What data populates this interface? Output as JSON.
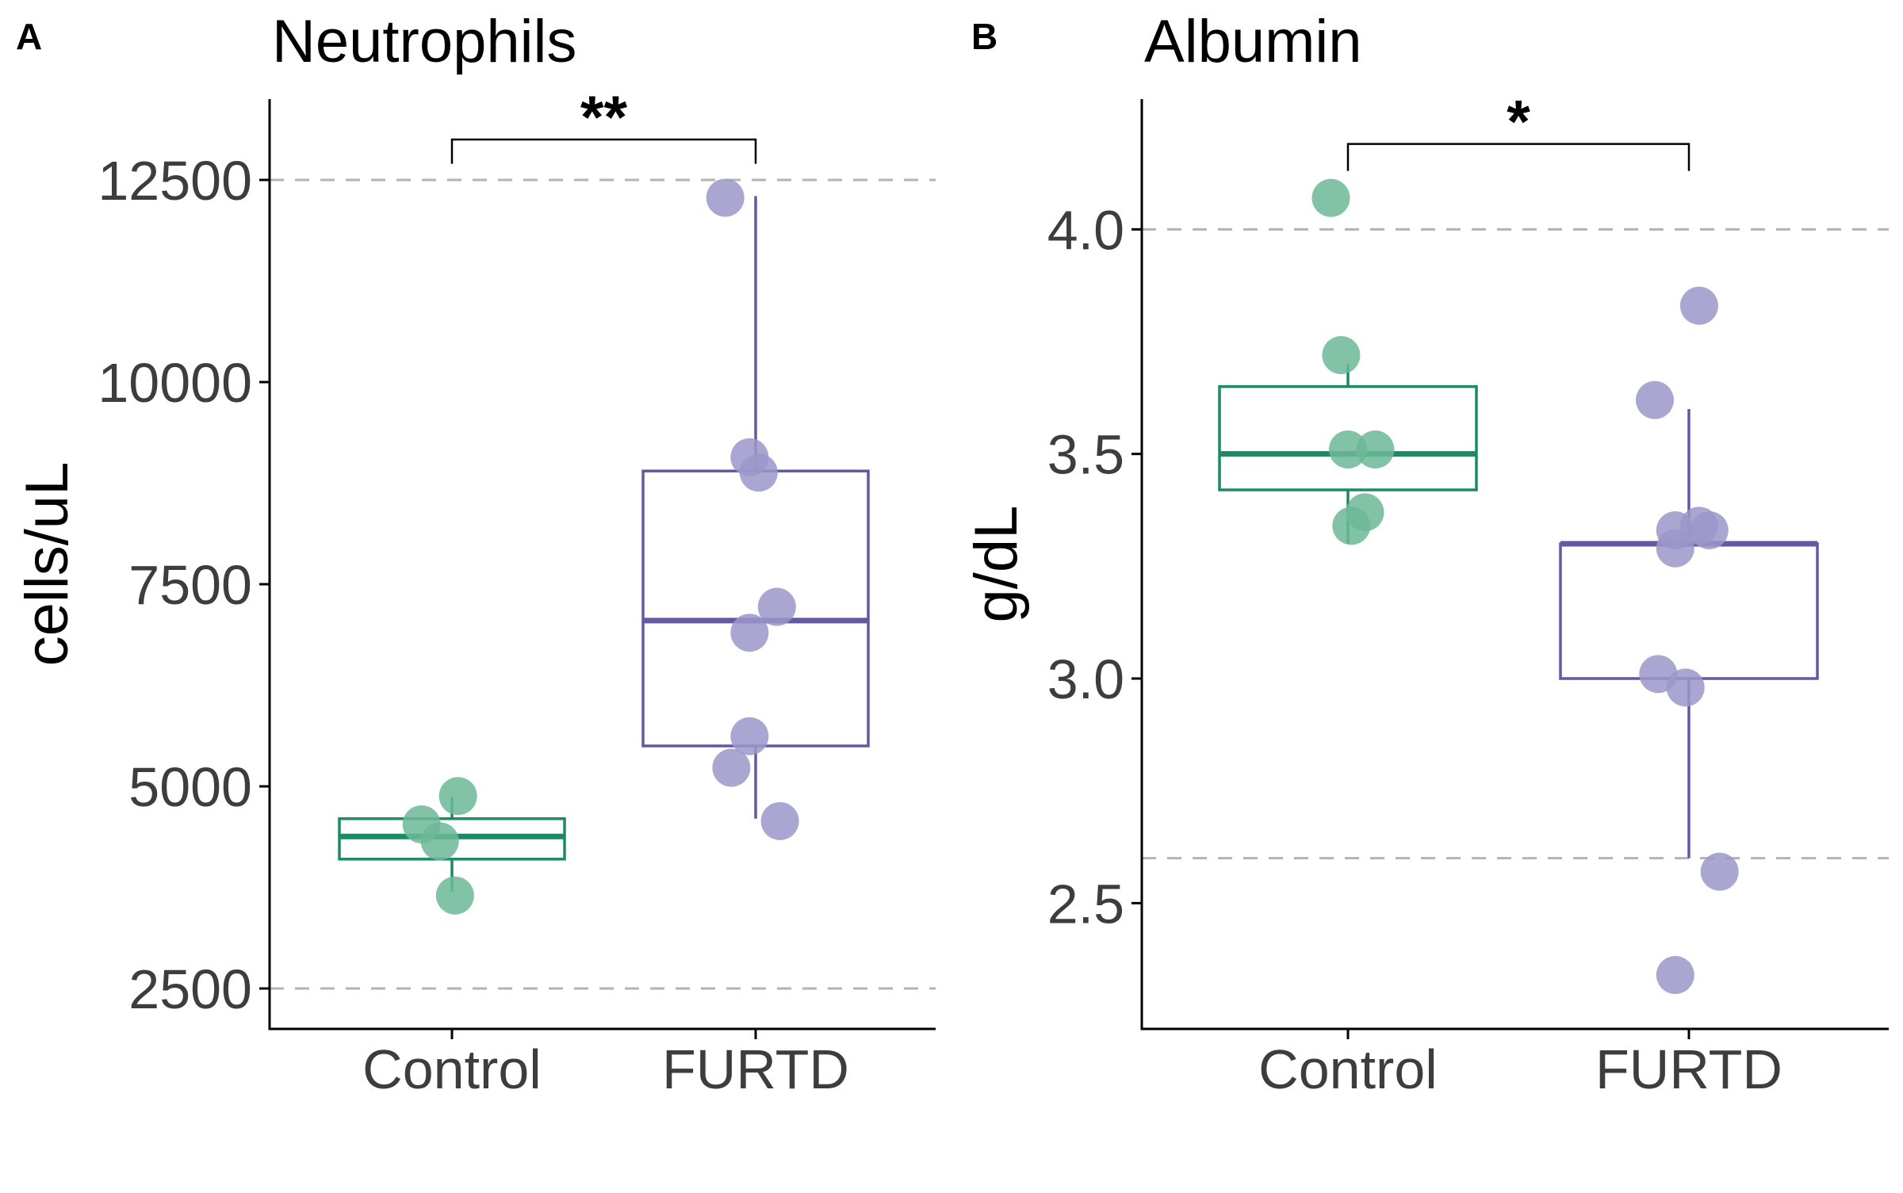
{
  "chart_data": [
    {
      "type": "box",
      "panel_label": "A",
      "title": "Neutrophils",
      "ylabel": "cells/uL",
      "xlabel": "",
      "categories": [
        "Control",
        "FURTD"
      ],
      "ylim": [
        2000,
        13500
      ],
      "yticks": [
        2500,
        5000,
        7500,
        10000,
        12500
      ],
      "reference_lines": [
        12500,
        2500
      ],
      "grid": false,
      "colors": {
        "Control": "#1b8a65",
        "FURTD": "#6258a4",
        "Control_point": "#6cb898",
        "FURTD_point": "#9b96ca"
      },
      "boxes": [
        {
          "name": "Control",
          "min": 3700,
          "q1": 4100,
          "median": 4380,
          "q3": 4600,
          "max": 4870
        },
        {
          "name": "FURTD",
          "min": 4600,
          "q1": 5500,
          "median": 7050,
          "q3": 8900,
          "max": 12300
        }
      ],
      "points": [
        {
          "group": "Control",
          "jitter": 0.02,
          "y": 4880
        },
        {
          "group": "Control",
          "jitter": -0.1,
          "y": 4530
        },
        {
          "group": "Control",
          "jitter": -0.04,
          "y": 4320
        },
        {
          "group": "Control",
          "jitter": 0.01,
          "y": 3650
        },
        {
          "group": "FURTD",
          "jitter": -0.1,
          "y": 12280
        },
        {
          "group": "FURTD",
          "jitter": -0.02,
          "y": 9070
        },
        {
          "group": "FURTD",
          "jitter": 0.01,
          "y": 8880
        },
        {
          "group": "FURTD",
          "jitter": 0.07,
          "y": 7220
        },
        {
          "group": "FURTD",
          "jitter": -0.02,
          "y": 6900
        },
        {
          "group": "FURTD",
          "jitter": -0.02,
          "y": 5620
        },
        {
          "group": "FURTD",
          "jitter": -0.08,
          "y": 5230
        },
        {
          "group": "FURTD",
          "jitter": 0.08,
          "y": 4570
        }
      ],
      "significance": {
        "label": "**",
        "from": "Control",
        "to": "FURTD",
        "y": 13000,
        "tick_bottom": 12700
      }
    },
    {
      "type": "box",
      "panel_label": "B",
      "title": "Albumin",
      "ylabel": "g/dL",
      "xlabel": "",
      "categories": [
        "Control",
        "FURTD"
      ],
      "ylim": [
        2.22,
        4.29
      ],
      "yticks": [
        2.5,
        3.0,
        3.5,
        4.0
      ],
      "yticks_text": [
        "2.5",
        "3.0",
        "3.5",
        "4.0"
      ],
      "reference_lines": [
        4.0,
        2.6
      ],
      "grid": false,
      "colors": {
        "Control": "#1b8a65",
        "FURTD": "#6258a4",
        "Control_point": "#6cb898",
        "FURTD_point": "#9b96ca"
      },
      "boxes": [
        {
          "name": "Control",
          "min": 3.3,
          "q1": 3.42,
          "median": 3.5,
          "q3": 3.65,
          "max": 3.7
        },
        {
          "name": "FURTD",
          "min": 2.6,
          "q1": 3.0,
          "median": 3.3,
          "q3": 3.3,
          "max": 3.6
        }
      ],
      "points": [
        {
          "group": "Control",
          "jitter": -0.05,
          "y": 4.07
        },
        {
          "group": "Control",
          "jitter": -0.02,
          "y": 3.72
        },
        {
          "group": "Control",
          "jitter": 0.0,
          "y": 3.51
        },
        {
          "group": "Control",
          "jitter": 0.08,
          "y": 3.51
        },
        {
          "group": "Control",
          "jitter": 0.05,
          "y": 3.37
        },
        {
          "group": "Control",
          "jitter": 0.01,
          "y": 3.34
        },
        {
          "group": "FURTD",
          "jitter": 0.03,
          "y": 3.83
        },
        {
          "group": "FURTD",
          "jitter": -0.1,
          "y": 3.62
        },
        {
          "group": "FURTD",
          "jitter": 0.03,
          "y": 3.34
        },
        {
          "group": "FURTD",
          "jitter": -0.04,
          "y": 3.33
        },
        {
          "group": "FURTD",
          "jitter": 0.06,
          "y": 3.33
        },
        {
          "group": "FURTD",
          "jitter": -0.04,
          "y": 3.29
        },
        {
          "group": "FURTD",
          "jitter": -0.09,
          "y": 3.01
        },
        {
          "group": "FURTD",
          "jitter": -0.01,
          "y": 2.98
        },
        {
          "group": "FURTD",
          "jitter": 0.09,
          "y": 2.57
        },
        {
          "group": "FURTD",
          "jitter": -0.04,
          "y": 2.34
        }
      ],
      "significance": {
        "label": "*",
        "from": "Control",
        "to": "FURTD",
        "y": 4.19,
        "tick_bottom": 4.13
      }
    }
  ]
}
